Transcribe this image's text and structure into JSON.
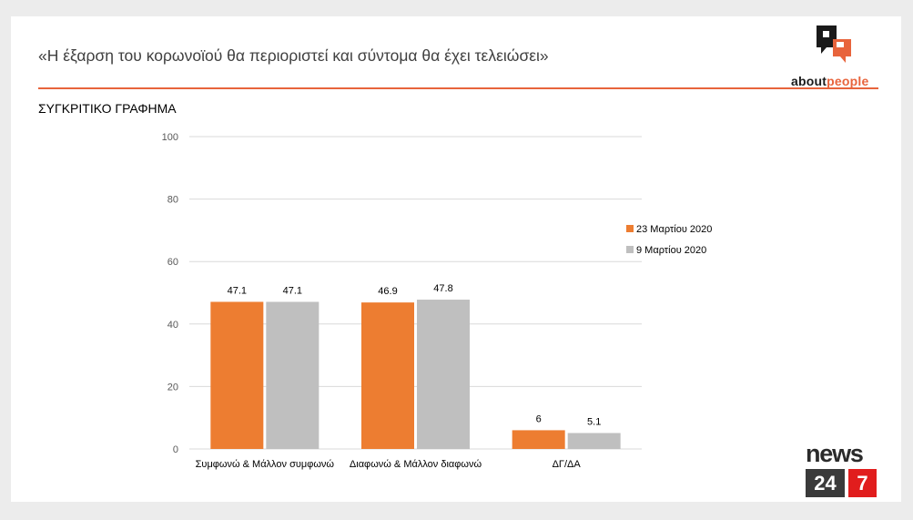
{
  "header": {
    "title": "«Η έξαρση του κορωνοϊού θα περιοριστεί και σύντομα θα έχει τελειώσει»",
    "subtitle": "ΣΥΓΚΡΙΤΙΚΟ ΓΡΑΦΗΜΑ"
  },
  "brand": {
    "logo_text_a": "about",
    "logo_text_b": "people",
    "news_word": "news",
    "news_num_a": "24",
    "news_num_b": "7"
  },
  "colors": {
    "series_1": "#ed7d31",
    "series_2": "#bfbfbf",
    "accent": "#e8643c"
  },
  "chart_data": {
    "type": "bar",
    "title": "",
    "xlabel": "",
    "ylabel": "",
    "ylim": [
      0,
      100
    ],
    "yticks": [
      0,
      20,
      40,
      60,
      80,
      100
    ],
    "grid": true,
    "legend_position": "right",
    "categories": [
      "Συμφωνώ & Μάλλον συμφωνώ",
      "Διαφωνώ & Μάλλον διαφωνώ",
      "ΔΓ/ΔΑ"
    ],
    "series": [
      {
        "name": "23 Μαρτίου 2020",
        "values": [
          47.1,
          46.9,
          6
        ],
        "labels": [
          "47.1",
          "46.9",
          "6"
        ]
      },
      {
        "name": "9 Μαρτίου 2020",
        "values": [
          47.1,
          47.8,
          5.1
        ],
        "labels": [
          "47.1",
          "47.8",
          "5.1"
        ]
      }
    ]
  }
}
